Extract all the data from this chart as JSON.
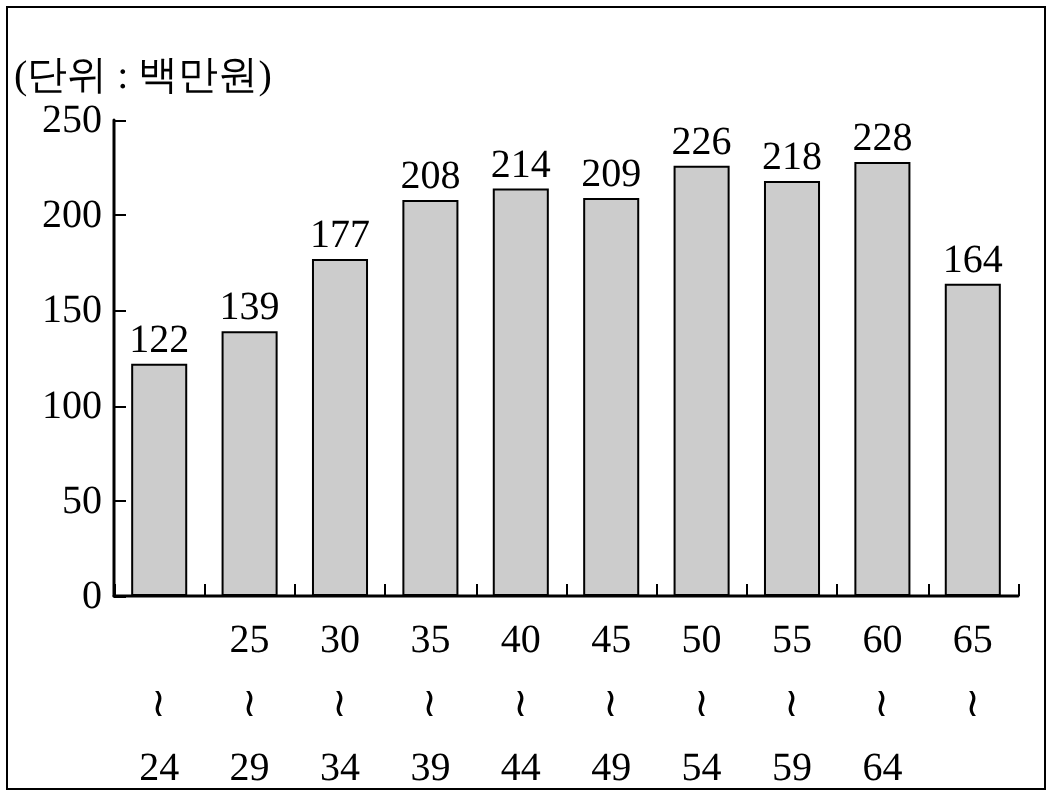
{
  "chart_data": {
    "type": "bar",
    "ylabel": "(단위 : 백만원)",
    "categories": [
      "\n≀\n24",
      "25\n≀\n29",
      "30\n≀\n34",
      "35\n≀\n39",
      "40\n≀\n44",
      "45\n≀\n49",
      "50\n≀\n54",
      "55\n≀\n59",
      "60\n≀\n64",
      "65\n≀\n"
    ],
    "values": [
      122,
      139,
      177,
      208,
      214,
      209,
      226,
      218,
      228,
      164
    ],
    "color": "#cccccc",
    "data_labels": true,
    "ylim": [
      0,
      250
    ],
    "yticks": [
      0,
      50,
      100,
      150,
      200,
      250
    ],
    "grid": false
  }
}
